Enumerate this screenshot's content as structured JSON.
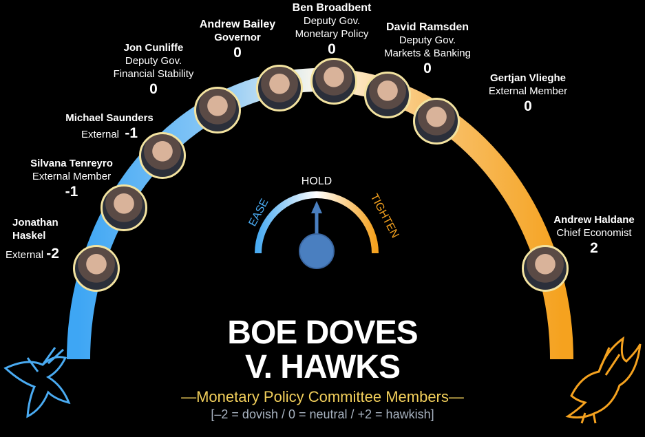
{
  "title_line1": "BOE DOVES",
  "title_line2": "V. HAWKS",
  "subtitle": "—Monetary Policy Committee Members—",
  "scale_note": "[–2 = dovish / 0 = neutral / +2 = hawkish]",
  "gauge": {
    "ease": "EASE",
    "hold": "HOLD",
    "tighten": "TIGHTEN"
  },
  "colors": {
    "dove": "#4aabf2",
    "hawk": "#f5a21f",
    "subtitle": "#f2cf5b",
    "note": "#a9b4c2",
    "needle": "#4a7fc0"
  },
  "members": [
    {
      "name": "Jonathan Haskel",
      "name_l1": "Jonathan",
      "name_l2": "Haskel",
      "role": "External",
      "score": "-2"
    },
    {
      "name": "Silvana Tenreyro",
      "role": "External Member",
      "score": "-1"
    },
    {
      "name": "Michael Saunders",
      "role": "External",
      "score": "-1"
    },
    {
      "name": "Jon Cunliffe",
      "role_l1": "Deputy Gov.",
      "role_l2": "Financial Stability",
      "score": "0"
    },
    {
      "name": "Andrew Bailey",
      "role": "Governor",
      "score": "0"
    },
    {
      "name": "Ben Broadbent",
      "role_l1": "Deputy Gov.",
      "role_l2": "Monetary Policy",
      "score": "0"
    },
    {
      "name": "David Ramsden",
      "role_l1": "Deputy Gov.",
      "role_l2": "Markets & Banking",
      "score": "0"
    },
    {
      "name": "Gertjan Vlieghe",
      "role": "External Member",
      "score": "0"
    },
    {
      "name": "Andrew Haldane",
      "role": "Chief Economist",
      "score": "2"
    }
  ],
  "icons": {
    "dove": "dove-icon",
    "hawk": "hawk-icon"
  }
}
